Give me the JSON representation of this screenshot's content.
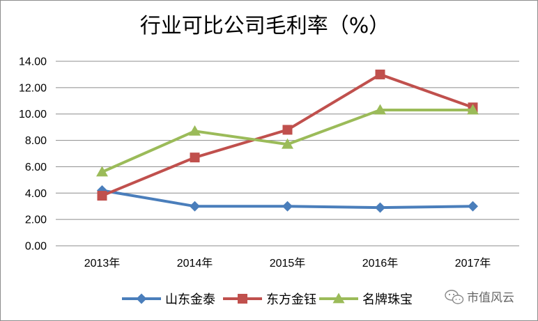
{
  "chart_data": {
    "type": "line",
    "title": "行业可比公司毛利率（%）",
    "categories": [
      "2013年",
      "2014年",
      "2015年",
      "2016年",
      "2017年"
    ],
    "ylim": [
      0,
      14
    ],
    "yticks": [
      "0.00",
      "2.00",
      "4.00",
      "6.00",
      "8.00",
      "10.00",
      "12.00",
      "14.00"
    ],
    "grid": true,
    "legend_position": "bottom",
    "series": [
      {
        "name": "山东金泰",
        "values": [
          4.2,
          3.0,
          3.0,
          2.9,
          3.0
        ],
        "color": "#4a7ebb",
        "marker": "diamond"
      },
      {
        "name": "东方金钰",
        "values": [
          3.8,
          6.7,
          8.8,
          13.0,
          10.5
        ],
        "color": "#c0504d",
        "marker": "square"
      },
      {
        "name": "名牌珠宝",
        "values": [
          5.6,
          8.7,
          7.7,
          10.3,
          10.3
        ],
        "color": "#9bbb59",
        "marker": "triangle"
      }
    ]
  },
  "watermark": {
    "text": "市值风云",
    "icon": "wechat-icon"
  },
  "colors": {
    "grid": "#8c8c8c",
    "border": "#8c8c8c",
    "background": "#ffffff"
  }
}
